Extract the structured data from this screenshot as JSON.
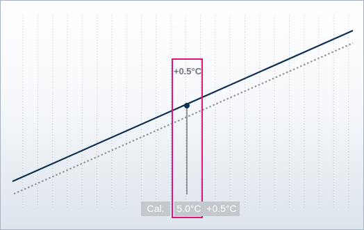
{
  "diagram": {
    "offset_annotation": "+0.5°C",
    "calibration": {
      "label": "Cal.",
      "temperature": "5.0°C",
      "offset": "+0.5°C"
    },
    "colors": {
      "measured_line": "#0e2f52",
      "reference_line": "#8d949a",
      "highlight_box": "#e0147a",
      "grid": "#b8bfc6",
      "cell_bg": "#c3c8cd"
    }
  }
}
